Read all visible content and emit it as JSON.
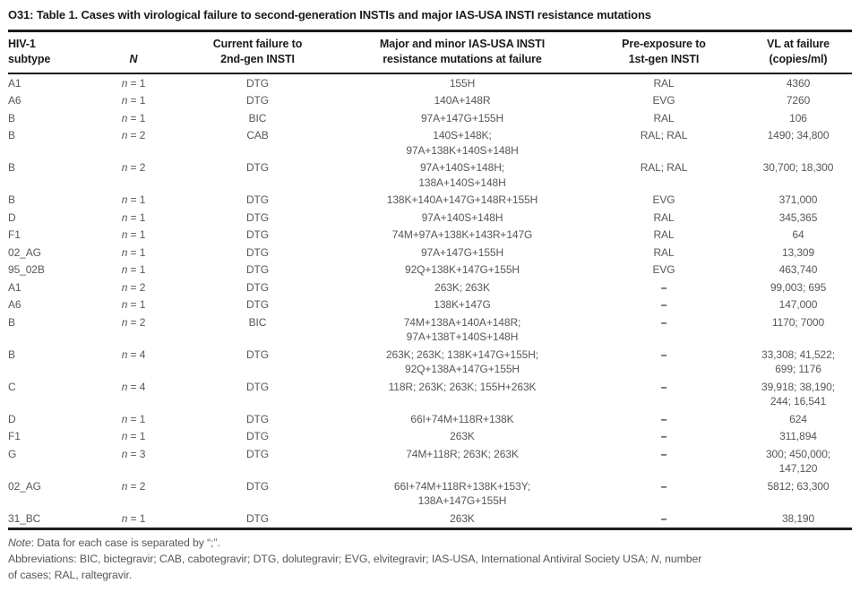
{
  "title": "O31: Table 1. Cases with virological failure to second-generation INSTIs and major IAS-USA INSTI resistance mutations",
  "colors": {
    "heading_text": "#1a1b1d",
    "body_text": "#54575c",
    "rule": "#1a1b1d",
    "background": "#ffffff"
  },
  "table": {
    "columns": [
      {
        "key": "subtype",
        "label": "HIV-1\nsubtype"
      },
      {
        "key": "n",
        "label": "N"
      },
      {
        "key": "drug",
        "label": "Current failure to\n2nd-gen INSTI"
      },
      {
        "key": "mutations",
        "label": "Major and minor IAS-USA INSTI\nresistance mutations at failure"
      },
      {
        "key": "pre_exposure",
        "label": "Pre-exposure to\n1st-gen INSTI"
      },
      {
        "key": "vl",
        "label": "VL at failure\n(copies/ml)"
      }
    ],
    "rows": [
      [
        "A1",
        "n = 1",
        "DTG",
        "155H",
        "RAL",
        "4360"
      ],
      [
        "A6",
        "n = 1",
        "DTG",
        "140A+148R",
        "EVG",
        "7260"
      ],
      [
        "B",
        "n = 1",
        "BIC",
        "97A+147G+155H",
        "RAL",
        "106"
      ],
      [
        "B",
        "n = 2",
        "CAB",
        "140S+148K;\n97A+138K+140S+148H",
        "RAL; RAL",
        "1490; 34,800"
      ],
      [
        "B",
        "n = 2",
        "DTG",
        "97A+140S+148H;\n138A+140S+148H",
        "RAL; RAL",
        "30,700; 18,300"
      ],
      [
        "B",
        "n = 1",
        "DTG",
        "138K+140A+147G+148R+155H",
        "EVG",
        "371,000"
      ],
      [
        "D",
        "n = 1",
        "DTG",
        "97A+140S+148H",
        "RAL",
        "345,365"
      ],
      [
        "F1",
        "n = 1",
        "DTG",
        "74M+97A+138K+143R+147G",
        "RAL",
        "64"
      ],
      [
        "02_AG",
        "n = 1",
        "DTG",
        "97A+147G+155H",
        "RAL",
        "13,309"
      ],
      [
        "95_02B",
        "n = 1",
        "DTG",
        "92Q+138K+147G+155H",
        "EVG",
        "463,740"
      ],
      [
        "A1",
        "n = 2",
        "DTG",
        "263K; 263K",
        "–",
        "99,003; 695"
      ],
      [
        "A6",
        "n = 1",
        "DTG",
        "138K+147G",
        "–",
        "147,000"
      ],
      [
        "B",
        "n = 2",
        "BIC",
        "74M+138A+140A+148R;\n97A+138T+140S+148H",
        "–",
        "1170; 7000"
      ],
      [
        "B",
        "n = 4",
        "DTG",
        "263K; 263K; 138K+147G+155H;\n92Q+138A+147G+155H",
        "–",
        "33,308; 41,522;\n699; 1176"
      ],
      [
        "C",
        "n = 4",
        "DTG",
        "118R; 263K; 263K; 155H+263K",
        "–",
        "39,918; 38,190;\n244; 16,541"
      ],
      [
        "D",
        "n = 1",
        "DTG",
        "66I+74M+118R+138K",
        "–",
        "624"
      ],
      [
        "F1",
        "n = 1",
        "DTG",
        "263K",
        "–",
        "311,894"
      ],
      [
        "G",
        "n = 3",
        "DTG",
        "74M+118R; 263K; 263K",
        "–",
        "300; 450,000;\n147,120"
      ],
      [
        "02_AG",
        "n = 2",
        "DTG",
        "66I+74M+118R+138K+153Y;\n138A+147G+155H",
        "–",
        "5812; 63,300"
      ],
      [
        "31_BC",
        "n = 1",
        "DTG",
        "263K",
        "–",
        "38,190"
      ]
    ]
  },
  "footnotes": {
    "note_label": "Note",
    "note_text": ": Data for each case is separated by “;”.",
    "abbr_part1": "Abbreviations: BIC, bictegravir; CAB, cabotegravir; DTG, dolutegravir; EVG, elvitegravir; IAS-USA, International Antiviral Society USA; ",
    "abbr_n": "N",
    "abbr_part2": ", number\nof cases; RAL, raltegravir."
  }
}
